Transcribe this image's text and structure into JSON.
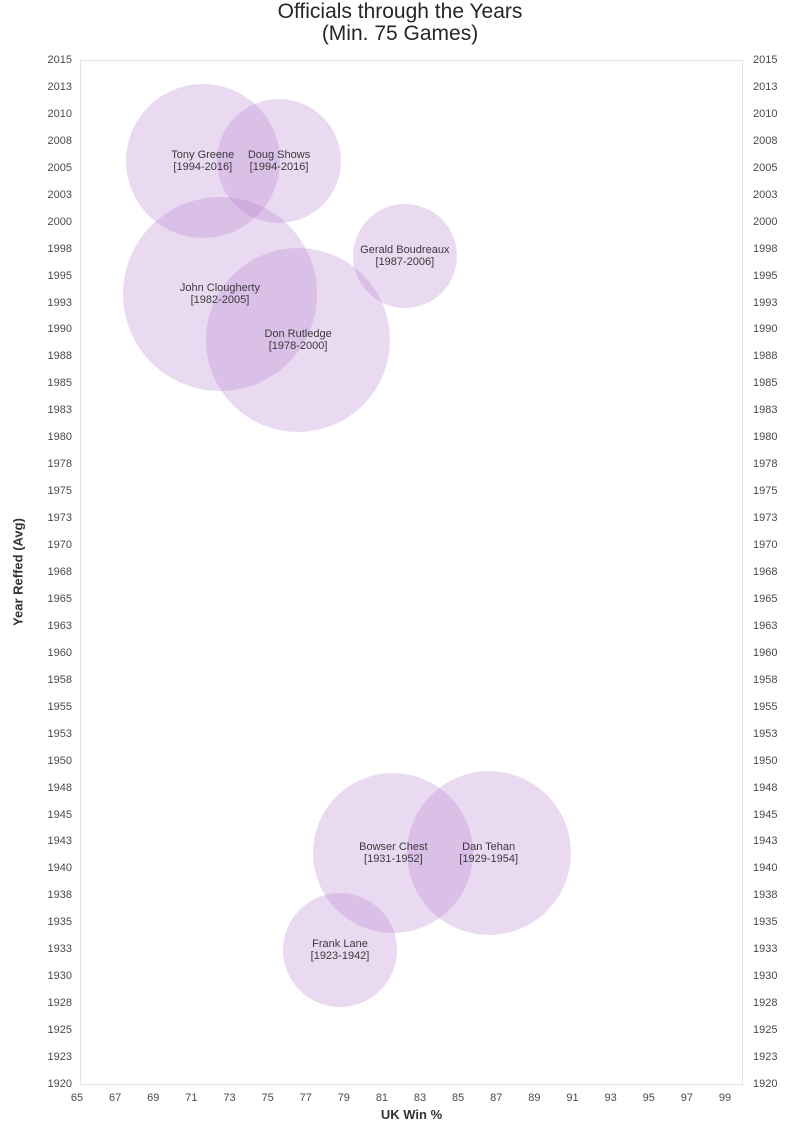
{
  "title": {
    "line1": "Officials through the Years",
    "line2": "(Min. 75 Games)"
  },
  "axes": {
    "x": {
      "label": "UK Win %",
      "tick_labels": [
        "65",
        "67",
        "69",
        "71",
        "73",
        "75",
        "77",
        "79",
        "81",
        "83",
        "85",
        "87",
        "89",
        "91",
        "93",
        "95",
        "97",
        "99"
      ]
    },
    "y": {
      "label": "Year Reffed (Avg)",
      "tick_labels": [
        "2015",
        "2013",
        "2010",
        "2008",
        "2005",
        "2003",
        "2000",
        "1998",
        "1995",
        "1993",
        "1990",
        "1988",
        "1985",
        "1983",
        "1980",
        "1978",
        "1975",
        "1973",
        "1970",
        "1968",
        "1965",
        "1963",
        "1960",
        "1958",
        "1955",
        "1953",
        "1950",
        "1948",
        "1945",
        "1943",
        "1940",
        "1938",
        "1935",
        "1933",
        "1930",
        "1928",
        "1925",
        "1923",
        "1920"
      ]
    }
  },
  "chart_data": {
    "type": "scatter",
    "subtype": "bubble",
    "title": "Officials through the Years (Min. 75 Games)",
    "xlabel": "UK Win %",
    "ylabel": "Year Reffed (Avg)",
    "xlim": [
      65,
      99
    ],
    "ylim": [
      1920,
      2015
    ],
    "grid": false,
    "legend_position": "none",
    "bubble_fill": "rgba(178, 118, 202, 0.27)",
    "points": [
      {
        "name": "Tony Greene",
        "range": "[1994-2016]",
        "x": 71.6,
        "y": 2005.6,
        "radius_px": 77
      },
      {
        "name": "Doug Shows",
        "range": "[1994-2016]",
        "x": 75.6,
        "y": 2005.6,
        "radius_px": 62
      },
      {
        "name": "Gerald Boudreaux",
        "range": "[1987-2006]",
        "x": 82.2,
        "y": 1996.8,
        "radius_px": 52
      },
      {
        "name": "John Clougherty",
        "range": "[1982-2005]",
        "x": 72.5,
        "y": 1993.3,
        "radius_px": 97
      },
      {
        "name": "Don Rutledge",
        "range": "[1978-2000]",
        "x": 76.6,
        "y": 1989.0,
        "radius_px": 92
      },
      {
        "name": "Bowser Chest",
        "range": "[1931-1952]",
        "x": 81.6,
        "y": 1941.4,
        "radius_px": 80
      },
      {
        "name": "Dan Tehan",
        "range": "[1929-1954]",
        "x": 86.6,
        "y": 1941.4,
        "radius_px": 82
      },
      {
        "name": "Frank Lane",
        "range": "[1923-1942]",
        "x": 78.8,
        "y": 1932.4,
        "radius_px": 57
      }
    ]
  }
}
